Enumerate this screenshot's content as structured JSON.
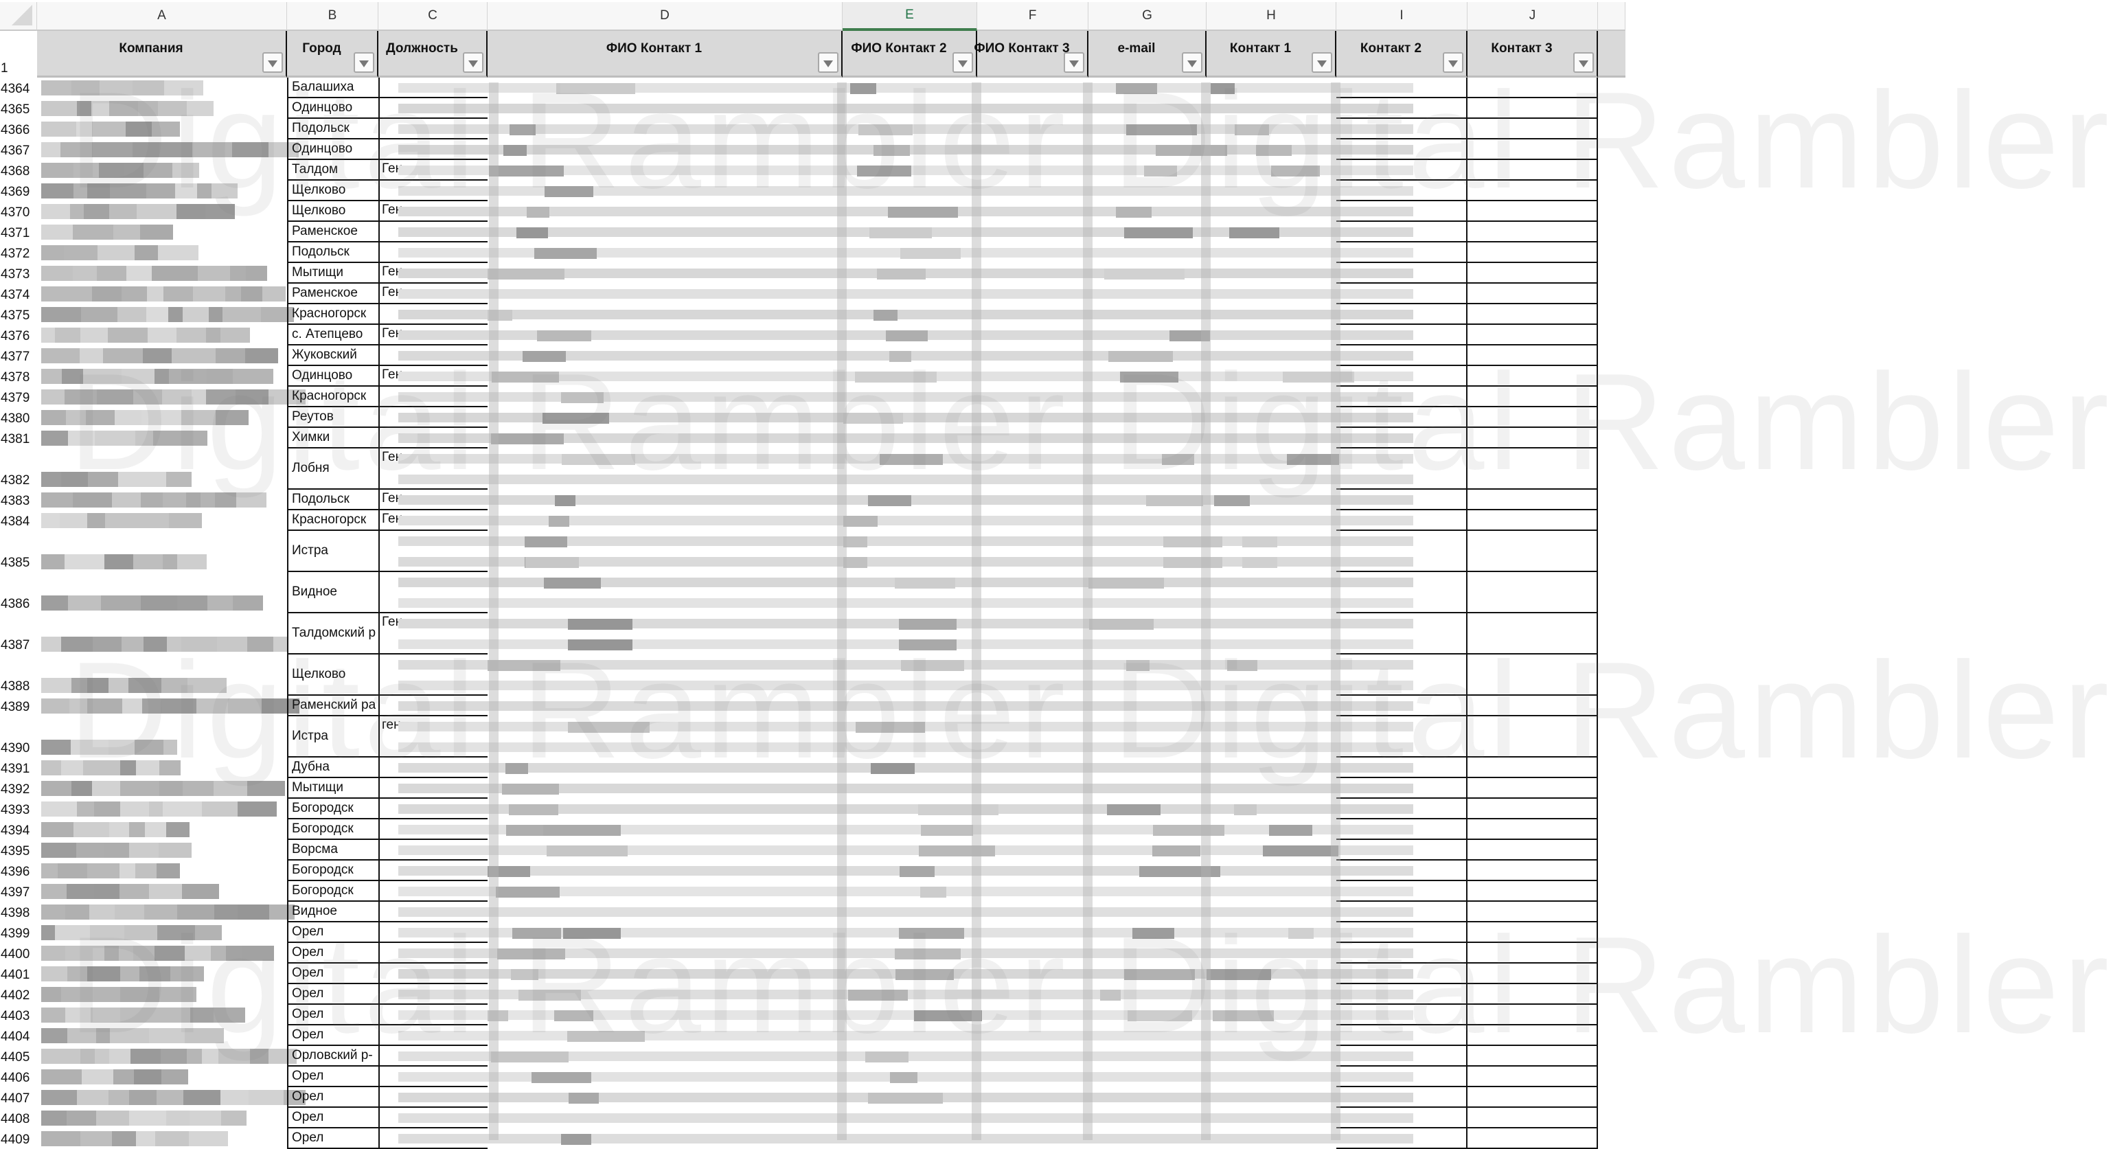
{
  "column_letters": [
    "A",
    "B",
    "C",
    "D",
    "E",
    "F",
    "G",
    "H",
    "I",
    "J"
  ],
  "selected_column": "E",
  "header_row_number": "1",
  "headers": [
    "Компания",
    "Город",
    "Должность",
    "ФИО Контакт 1",
    "ФИО Контакт 2",
    "ФИО Контакт 3",
    "e-mail",
    "Контакт 1",
    "Контакт 2",
    "Контакт 3"
  ],
  "rows": [
    {
      "n": "4364",
      "city": "Балашиха",
      "position": ""
    },
    {
      "n": "4365",
      "city": "Одинцово",
      "position": ""
    },
    {
      "n": "4366",
      "city": "Подольск",
      "position": ""
    },
    {
      "n": "4367",
      "city": "Одинцово",
      "position": ""
    },
    {
      "n": "4368",
      "city": "Талдом",
      "position": "Ген"
    },
    {
      "n": "4369",
      "city": "Щелково",
      "position": ""
    },
    {
      "n": "4370",
      "city": "Щелково",
      "position": "Ген"
    },
    {
      "n": "4371",
      "city": "Раменское",
      "position": ""
    },
    {
      "n": "4372",
      "city": "Подольск",
      "position": ""
    },
    {
      "n": "4373",
      "city": "Мытищи",
      "position": "Ген"
    },
    {
      "n": "4374",
      "city": "Раменское",
      "position": "Ген"
    },
    {
      "n": "4375",
      "city": "Красногорск",
      "position": ""
    },
    {
      "n": "4376",
      "city": "с. Атепцево",
      "position": "Ген"
    },
    {
      "n": "4377",
      "city": "Жуковский",
      "position": ""
    },
    {
      "n": "4378",
      "city": "Одинцово",
      "position": "Ген"
    },
    {
      "n": "4379",
      "city": "Красногорск",
      "position": ""
    },
    {
      "n": "4380",
      "city": "Реутов",
      "position": ""
    },
    {
      "n": "4381",
      "city": "Химки",
      "position": ""
    },
    {
      "n": "4382",
      "city": "Лобня",
      "position": "Ген"
    },
    {
      "n": "4383",
      "city": "Подольск",
      "position": "Ген"
    },
    {
      "n": "4384",
      "city": "Красногорск",
      "position": "Ген"
    },
    {
      "n": "4385",
      "city": "Истра",
      "position": ""
    },
    {
      "n": "4386",
      "city": "Видное",
      "position": ""
    },
    {
      "n": "4387",
      "city": "Талдомский р",
      "position": "Ген"
    },
    {
      "n": "4388",
      "city": "Щелково",
      "position": ""
    },
    {
      "n": "4389",
      "city": "Раменский ра",
      "position": ""
    },
    {
      "n": "4390",
      "city": "Истра",
      "position": "ген"
    },
    {
      "n": "4391",
      "city": "Дубна",
      "position": ""
    },
    {
      "n": "4392",
      "city": "Мытищи",
      "position": ""
    },
    {
      "n": "4393",
      "city": "Богородск",
      "position": ""
    },
    {
      "n": "4394",
      "city": "Богородск",
      "position": ""
    },
    {
      "n": "4395",
      "city": "Ворсма",
      "position": ""
    },
    {
      "n": "4396",
      "city": "Богородск",
      "position": ""
    },
    {
      "n": "4397",
      "city": "Богородск",
      "position": ""
    },
    {
      "n": "4398",
      "city": "Видное",
      "position": ""
    },
    {
      "n": "4399",
      "city": "Орел",
      "position": ""
    },
    {
      "n": "4400",
      "city": "Орел",
      "position": ""
    },
    {
      "n": "4401",
      "city": "Орел",
      "position": ""
    },
    {
      "n": "4402",
      "city": "Орел",
      "position": ""
    },
    {
      "n": "4403",
      "city": "Орел",
      "position": ""
    },
    {
      "n": "4404",
      "city": "Орел",
      "position": ""
    },
    {
      "n": "4405",
      "city": "Орловский р-",
      "position": ""
    },
    {
      "n": "4406",
      "city": "Орел",
      "position": ""
    },
    {
      "n": "4407",
      "city": "Орел",
      "position": ""
    },
    {
      "n": "4408",
      "city": "Орел",
      "position": ""
    },
    {
      "n": "4409",
      "city": "Орел",
      "position": ""
    }
  ],
  "watermark": "Digital Rambler",
  "colors": {
    "selected_column": "#217346",
    "header_fill": "#d9d9d9",
    "border": "#111111"
  },
  "icons": {
    "filter": "filter-dropdown-icon",
    "select_all": "select-all-corner-icon"
  }
}
